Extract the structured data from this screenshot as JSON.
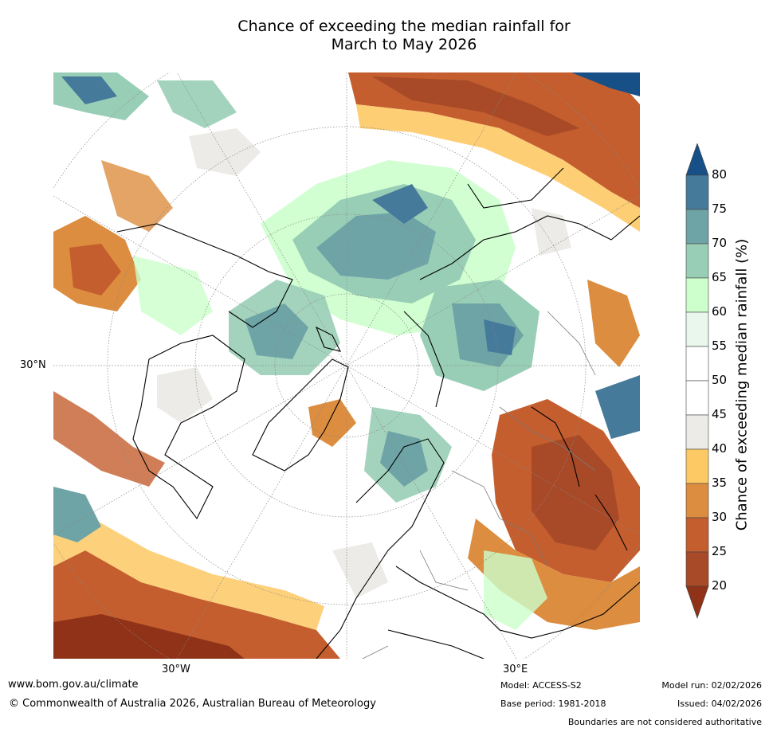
{
  "title": {
    "line1": "Chance of exceeding the median rainfall for",
    "line2": "March to May 2026"
  },
  "map": {
    "projection": "north-polar-stereographic",
    "labels": {
      "lat_30n": "30°N",
      "lon_30w": "30°W",
      "lon_30e": "30°E"
    }
  },
  "legend": {
    "title": "Chance of exceeding median rainfall (%)",
    "ticks": [
      "80",
      "75",
      "70",
      "65",
      "60",
      "55",
      "50",
      "45",
      "40",
      "35",
      "30",
      "25",
      "20"
    ],
    "bins": [
      {
        "range": "80+",
        "color": "#174f87"
      },
      {
        "range": "75-80",
        "color": "#457a9a"
      },
      {
        "range": "70-75",
        "color": "#6ea4a6"
      },
      {
        "range": "65-70",
        "color": "#99ceb6"
      },
      {
        "range": "60-65",
        "color": "#ccffcc"
      },
      {
        "range": "55-60",
        "color": "#e9f7ec"
      },
      {
        "range": "50-55",
        "color": "#ffffff"
      },
      {
        "range": "45-50",
        "color": "#ffffff"
      },
      {
        "range": "40-45",
        "color": "#ecebe7"
      },
      {
        "range": "35-40",
        "color": "#fdc964"
      },
      {
        "range": "30-35",
        "color": "#dc8d3f"
      },
      {
        "range": "25-30",
        "color": "#c45e2e"
      },
      {
        "range": "20-25",
        "color": "#a84a28"
      },
      {
        "range": "<20",
        "color": "#8f3217"
      }
    ]
  },
  "footer": {
    "url": "www.bom.gov.au/climate",
    "copyright": "© Commonwealth of Australia 2026, Australian Bureau of Meteorology",
    "model": "Model: ACCESS-S2",
    "base_period": "Base period: 1981-2018",
    "model_run": "Model run: 02/02/2026",
    "issued": "Issued: 04/02/2026",
    "disclaimer": "Boundaries are not considered authoritative"
  }
}
